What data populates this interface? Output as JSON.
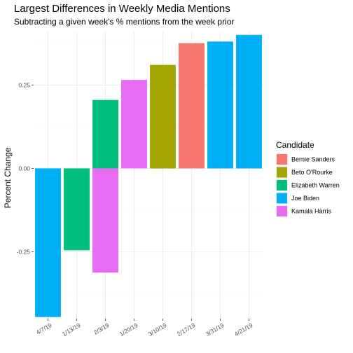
{
  "chart_data": {
    "type": "bar",
    "title": "Largest Differences in Weekly Media Mentions",
    "subtitle": "Subtracting a given week's % mentions from the week prior",
    "xlabel": "",
    "ylabel": "Percent Change",
    "ylim": [
      -0.45,
      0.41
    ],
    "yticks": [
      -0.25,
      0.0,
      0.25
    ],
    "ytick_labels": [
      "-0.25",
      "0.00",
      "0.25"
    ],
    "grid": true,
    "legend": {
      "title": "Candidate",
      "position": "right"
    },
    "categories": [
      "4/7/19",
      "1/13/19",
      "2/3/19",
      "1/20/19",
      "3/10/19",
      "2/17/19",
      "3/31/19",
      "4/21/19"
    ],
    "series": [
      {
        "name": "Bernie Sanders",
        "color": "#F8766D"
      },
      {
        "name": "Beto O'Rourke",
        "color": "#A3A500"
      },
      {
        "name": "Elizabeth Warren",
        "color": "#00BF7D"
      },
      {
        "name": "Joe Biden",
        "color": "#00B0F6"
      },
      {
        "name": "Kamala Harris",
        "color": "#E76BF3"
      }
    ],
    "bars": [
      {
        "category": "4/7/19",
        "series": "Joe Biden",
        "value": -0.445
      },
      {
        "category": "1/13/19",
        "series": "Elizabeth Warren",
        "value": -0.245
      },
      {
        "category": "2/3/19",
        "series": "Elizabeth Warren",
        "value": 0.205
      },
      {
        "category": "2/3/19",
        "series": "Kamala Harris",
        "value": -0.312
      },
      {
        "category": "1/20/19",
        "series": "Kamala Harris",
        "value": 0.265
      },
      {
        "category": "3/10/19",
        "series": "Beto O'Rourke",
        "value": 0.31
      },
      {
        "category": "2/17/19",
        "series": "Bernie Sanders",
        "value": 0.375
      },
      {
        "category": "3/31/19",
        "series": "Joe Biden",
        "value": 0.38
      },
      {
        "category": "4/21/19",
        "series": "Joe Biden",
        "value": 0.4
      }
    ]
  }
}
